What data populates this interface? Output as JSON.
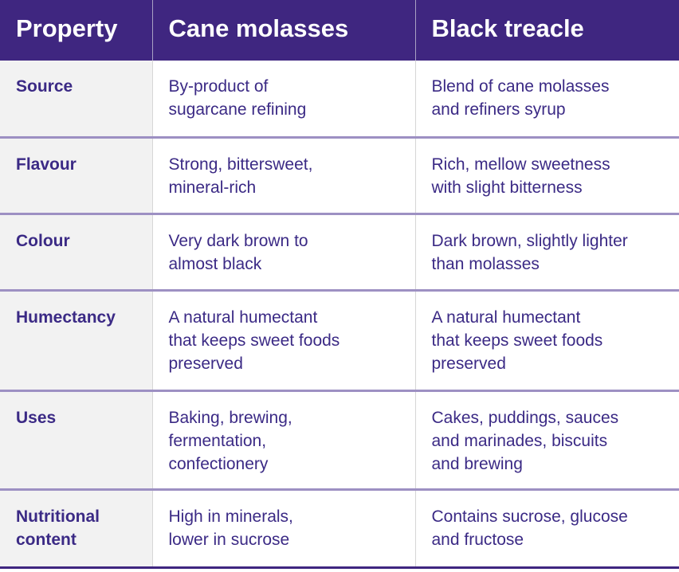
{
  "table": {
    "headers": [
      "Property",
      "Cane molasses",
      "Black treacle"
    ],
    "rows": [
      {
        "property": [
          "Source"
        ],
        "cane_molasses": [
          "By-product of",
          "sugarcane refining"
        ],
        "black_treacle": [
          "Blend of cane molasses",
          "and refiners syrup"
        ]
      },
      {
        "property": [
          "Flavour"
        ],
        "cane_molasses": [
          "Strong, bittersweet,",
          "mineral-rich"
        ],
        "black_treacle": [
          "Rich, mellow sweetness",
          "with slight bitterness"
        ]
      },
      {
        "property": [
          "Colour"
        ],
        "cane_molasses": [
          "Very dark brown to",
          "almost black"
        ],
        "black_treacle": [
          "Dark brown, slightly lighter",
          "than molasses"
        ]
      },
      {
        "property": [
          "Humectancy"
        ],
        "cane_molasses": [
          "A natural humectant",
          "that keeps sweet foods",
          "preserved"
        ],
        "black_treacle": [
          "A natural humectant",
          "that keeps sweet foods",
          "preserved"
        ]
      },
      {
        "property": [
          "Uses"
        ],
        "cane_molasses": [
          "Baking, brewing,",
          "fermentation,",
          "confectionery"
        ],
        "black_treacle": [
          "Cakes, puddings, sauces",
          "and marinades, biscuits",
          "and brewing"
        ]
      },
      {
        "property": [
          "Nutritional",
          "content"
        ],
        "cane_molasses": [
          "High in minerals,",
          "lower in sucrose"
        ],
        "black_treacle": [
          "Contains sucrose, glucose",
          "and fructose"
        ]
      }
    ]
  },
  "colors": {
    "header_bg": "#3f2680",
    "header_text": "#ffffff",
    "body_text": "#3b2a85",
    "property_col_bg": "#f2f2f2",
    "row_divider": "#9d90c3"
  }
}
